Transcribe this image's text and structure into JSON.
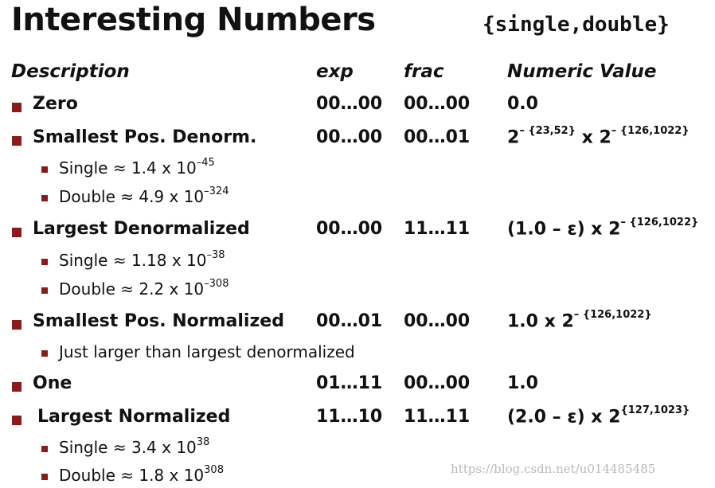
{
  "title": "Interesting Numbers",
  "tag": "{single,double}",
  "header": {
    "description": "Description",
    "exp": "exp",
    "frac": "frac",
    "value": "Numeric Value"
  },
  "rows": [
    {
      "label": "Zero",
      "exp": "00…00",
      "frac": "00…00",
      "value_base": "0.0",
      "value_sup1": "",
      "value_mid": "",
      "value_sup2": ""
    },
    {
      "label": "Smallest Pos. Denorm.",
      "exp": "00…00",
      "frac": "00…01",
      "value_base": "2",
      "value_sup1": "– {23,52}",
      "value_mid": " x 2",
      "value_sup2": "– {126,1022}"
    },
    {
      "label": "Largest Denormalized",
      "exp": "00…00",
      "frac": "11…11",
      "value_base": "(1.0 – ε) x 2",
      "value_sup1": "– {126,1022}",
      "value_mid": "",
      "value_sup2": ""
    },
    {
      "label": "Smallest Pos. Normalized",
      "exp": "00…01",
      "frac": "00…00",
      "value_base": "1.0 x 2",
      "value_sup1": "– {126,1022}",
      "value_mid": "",
      "value_sup2": ""
    },
    {
      "label": "One",
      "exp": "01…11",
      "frac": "00…00",
      "value_base": "1.0",
      "value_sup1": "",
      "value_mid": "",
      "value_sup2": ""
    },
    {
      "label": "Largest Normalized",
      "exp": "11…10",
      "frac": "11…11",
      "value_base": "(2.0 – ε) x 2",
      "value_sup1": "{127,1023}",
      "value_mid": "",
      "value_sup2": ""
    }
  ],
  "subs": {
    "denorm_single": {
      "text": "Single ≈ 1.4 x 10",
      "sup": "–45"
    },
    "denorm_double": {
      "text": "Double ≈ 4.9 x 10",
      "sup": "–324"
    },
    "largest_denorm_single": {
      "text": "Single ≈ 1.18 x 10",
      "sup": "–38"
    },
    "largest_denorm_double": {
      "text": "Double ≈ 2.2 x 10",
      "sup": "–308"
    },
    "smallest_norm_note": {
      "text": "Just larger than largest denormalized",
      "sup": ""
    },
    "largest_norm_single": {
      "text": "Single ≈ 3.4 x 10",
      "sup": "38"
    },
    "largest_norm_double": {
      "text": "Double ≈ 1.8 x 10",
      "sup": "308"
    }
  },
  "watermark": "https://blog.csdn.net/u014485485",
  "colors": {
    "bullet": "#8b1a1a",
    "text": "#111111",
    "watermark": "#b9b9b9"
  }
}
